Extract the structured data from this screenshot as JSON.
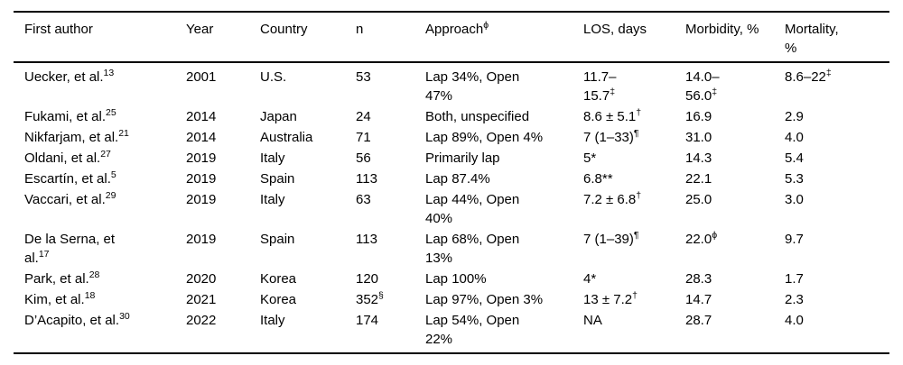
{
  "colors": {
    "background": "#ffffff",
    "text": "#000000",
    "rule": "#000000"
  },
  "table": {
    "columns": [
      {
        "t": "First author",
        "s": ""
      },
      {
        "t": "Year",
        "s": ""
      },
      {
        "t": "Country",
        "s": ""
      },
      {
        "t": "n",
        "s": ""
      },
      {
        "t": "Approach",
        "s": "ϕ"
      },
      {
        "t": "LOS, days",
        "s": ""
      },
      {
        "t": "Morbidity, %",
        "s": ""
      },
      {
        "t": "Mortality, %",
        "s": ""
      }
    ],
    "rows": [
      {
        "cells": [
          {
            "t": "Uecker, et al.",
            "s": "13"
          },
          {
            "t": "2001",
            "s": ""
          },
          {
            "t": "U.S.",
            "s": ""
          },
          {
            "t": "53",
            "s": ""
          },
          {
            "t": "Lap 34%, Open 47%",
            "s": ""
          },
          {
            "t": "11.7–15.7",
            "s": "‡"
          },
          {
            "t": "14.0–56.0",
            "s": "‡"
          },
          {
            "t": "8.6–22",
            "s": "‡"
          }
        ]
      },
      {
        "cells": [
          {
            "t": "Fukami, et al.",
            "s": "25"
          },
          {
            "t": "2014",
            "s": ""
          },
          {
            "t": "Japan",
            "s": ""
          },
          {
            "t": "24",
            "s": ""
          },
          {
            "t": "Both, unspecified",
            "s": ""
          },
          {
            "t": "8.6 ± 5.1",
            "s": "†"
          },
          {
            "t": "16.9",
            "s": ""
          },
          {
            "t": "2.9",
            "s": ""
          }
        ]
      },
      {
        "cells": [
          {
            "t": "Nikfarjam, et al.",
            "s": "21"
          },
          {
            "t": "2014",
            "s": ""
          },
          {
            "t": "Australia",
            "s": ""
          },
          {
            "t": "71",
            "s": ""
          },
          {
            "t": "Lap 89%, Open 4%",
            "s": ""
          },
          {
            "t": "7 (1–33)",
            "s": "¶"
          },
          {
            "t": "31.0",
            "s": ""
          },
          {
            "t": "4.0",
            "s": ""
          }
        ]
      },
      {
        "cells": [
          {
            "t": "Oldani, et al.",
            "s": "27"
          },
          {
            "t": "2019",
            "s": ""
          },
          {
            "t": "Italy",
            "s": ""
          },
          {
            "t": "56",
            "s": ""
          },
          {
            "t": "Primarily lap",
            "s": ""
          },
          {
            "t": "5*",
            "s": ""
          },
          {
            "t": "14.3",
            "s": ""
          },
          {
            "t": "5.4",
            "s": ""
          }
        ]
      },
      {
        "cells": [
          {
            "t": "Escartín, et al.",
            "s": "5"
          },
          {
            "t": "2019",
            "s": ""
          },
          {
            "t": "Spain",
            "s": ""
          },
          {
            "t": "113",
            "s": ""
          },
          {
            "t": "Lap 87.4%",
            "s": ""
          },
          {
            "t": "6.8**",
            "s": ""
          },
          {
            "t": "22.1",
            "s": ""
          },
          {
            "t": "5.3",
            "s": ""
          }
        ]
      },
      {
        "cells": [
          {
            "t": "Vaccari, et al.",
            "s": "29"
          },
          {
            "t": "2019",
            "s": ""
          },
          {
            "t": "Italy",
            "s": ""
          },
          {
            "t": "63",
            "s": ""
          },
          {
            "t": "Lap 44%, Open 40%",
            "s": ""
          },
          {
            "t": "7.2 ± 6.8",
            "s": "†"
          },
          {
            "t": "25.0",
            "s": ""
          },
          {
            "t": "3.0",
            "s": ""
          }
        ]
      },
      {
        "cells": [
          {
            "t": "De la Serna, et al.",
            "s": "17"
          },
          {
            "t": "2019",
            "s": ""
          },
          {
            "t": "Spain",
            "s": ""
          },
          {
            "t": "113",
            "s": ""
          },
          {
            "t": "Lap 68%, Open 13%",
            "s": ""
          },
          {
            "t": "7 (1–39)",
            "s": "¶"
          },
          {
            "t": "22.0",
            "s": "ϕ"
          },
          {
            "t": "9.7",
            "s": ""
          }
        ]
      },
      {
        "cells": [
          {
            "t": "Park, et al.",
            "s": "28"
          },
          {
            "t": "2020",
            "s": ""
          },
          {
            "t": "Korea",
            "s": ""
          },
          {
            "t": "120",
            "s": ""
          },
          {
            "t": "Lap 100%",
            "s": ""
          },
          {
            "t": "4*",
            "s": ""
          },
          {
            "t": "28.3",
            "s": ""
          },
          {
            "t": "1.7",
            "s": ""
          }
        ]
      },
      {
        "cells": [
          {
            "t": "Kim, et al.",
            "s": "18"
          },
          {
            "t": "2021",
            "s": ""
          },
          {
            "t": "Korea",
            "s": ""
          },
          {
            "t": "352",
            "s": "§"
          },
          {
            "t": "Lap 97%, Open 3%",
            "s": ""
          },
          {
            "t": "13 ± 7.2",
            "s": "†"
          },
          {
            "t": "14.7",
            "s": ""
          },
          {
            "t": "2.3",
            "s": ""
          }
        ]
      },
      {
        "cells": [
          {
            "t": "D’Acapito, et al.",
            "s": "30"
          },
          {
            "t": "2022",
            "s": ""
          },
          {
            "t": "Italy",
            "s": ""
          },
          {
            "t": "174",
            "s": ""
          },
          {
            "t": "Lap 54%, Open 22%",
            "s": ""
          },
          {
            "t": "NA",
            "s": ""
          },
          {
            "t": "28.7",
            "s": ""
          },
          {
            "t": "4.0",
            "s": ""
          }
        ]
      }
    ]
  }
}
